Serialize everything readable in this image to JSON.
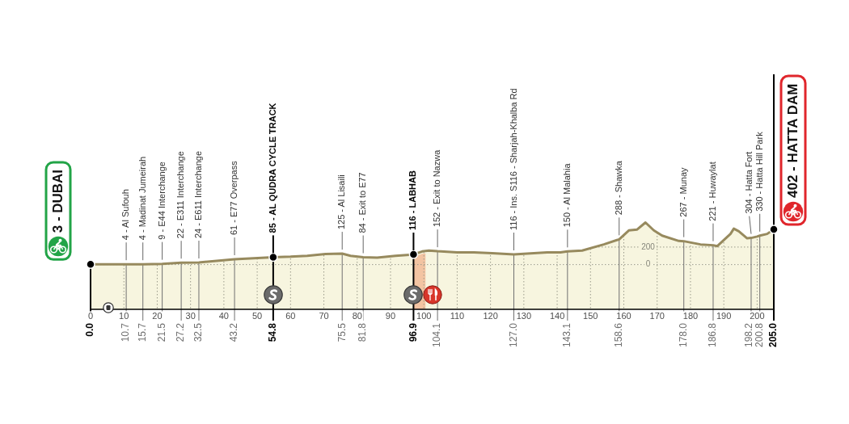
{
  "chart_data": {
    "type": "area",
    "xlim": [
      0,
      205
    ],
    "xticks": [
      0,
      10,
      20,
      30,
      40,
      50,
      60,
      70,
      80,
      90,
      100,
      110,
      120,
      130,
      140,
      150,
      160,
      170,
      180,
      190,
      200
    ],
    "ylim": [
      -510,
      2170
    ],
    "yticks": [
      0,
      200
    ],
    "grid": true,
    "series": [
      {
        "color": "#f7f5df",
        "x": [
          0,
          10.7,
          15.7,
          21.5,
          27.2,
          32.5,
          43.2,
          54.8,
          60,
          65,
          70.5,
          75.5,
          78,
          81.8,
          86,
          91.5,
          96.9,
          99.5,
          101.5,
          104.1,
          110,
          115,
          120.5,
          127,
          133,
          137,
          141,
          143.1,
          147.5,
          154,
          158.6,
          161.5,
          164,
          166.5,
          169,
          171.5,
          176.5,
          178,
          183,
          186.8,
          188,
          192,
          193,
          194.5,
          197,
          198.2,
          200,
          200.8,
          203,
          205
        ],
        "values": [
          3,
          4,
          4,
          9,
          22,
          24,
          61,
          85,
          90,
          100,
          120,
          125,
          100,
          84,
          80,
          100,
          116,
          150,
          160,
          152,
          140,
          140,
          130,
          116,
          130,
          140,
          140,
          150,
          160,
          230,
          288,
          390,
          400,
          480,
          390,
          330,
          270,
          267,
          230,
          221,
          210,
          350,
          410,
          380,
          300,
          304,
          320,
          330,
          350,
          402
        ]
      },
      {
        "type": "scatter",
        "color": "#000000",
        "marker": "circle",
        "x": [
          0,
          54.8,
          96.9,
          205
        ],
        "values": [
          3,
          85,
          116,
          402
        ]
      }
    ],
    "bands": [
      {
        "axis": "y",
        "from": -510,
        "to": 0,
        "color": "#f7f5df"
      },
      {
        "axis": "x",
        "from": 97,
        "to": 100.5,
        "color": "#f3c4a2"
      }
    ],
    "ref_lines": [
      {
        "axis": "x",
        "value": 0,
        "label": "0.0",
        "color": "#000000"
      },
      {
        "axis": "x",
        "value": 10.7,
        "label": "10.7",
        "color": "#707070"
      },
      {
        "axis": "x",
        "value": 15.7,
        "label": "15.7",
        "color": "#707070"
      },
      {
        "axis": "x",
        "value": 21.5,
        "label": "21.5",
        "color": "#707070"
      },
      {
        "axis": "x",
        "value": 27.2,
        "label": "27.2",
        "color": "#707070"
      },
      {
        "axis": "x",
        "value": 32.5,
        "label": "32.5",
        "color": "#707070"
      },
      {
        "axis": "x",
        "value": 43.2,
        "label": "43.2",
        "color": "#707070"
      },
      {
        "axis": "x",
        "value": 54.8,
        "label": "54.8",
        "color": "#000000"
      },
      {
        "axis": "x",
        "value": 75.5,
        "label": "75.5",
        "color": "#707070"
      },
      {
        "axis": "x",
        "value": 81.8,
        "label": "81.8",
        "color": "#707070"
      },
      {
        "axis": "x",
        "value": 96.9,
        "label": "96.9",
        "color": "#000000"
      },
      {
        "axis": "x",
        "value": 104.1,
        "label": "104.1",
        "color": "#707070"
      },
      {
        "axis": "x",
        "value": 127,
        "label": "127.0",
        "color": "#707070"
      },
      {
        "axis": "x",
        "value": 143.1,
        "label": "143.1",
        "color": "#707070"
      },
      {
        "axis": "x",
        "value": 158.6,
        "label": "158.6",
        "color": "#707070"
      },
      {
        "axis": "x",
        "value": 178,
        "label": "178.0",
        "color": "#707070"
      },
      {
        "axis": "x",
        "value": 186.8,
        "label": "186.8",
        "color": "#707070"
      },
      {
        "axis": "x",
        "value": 198.2,
        "label": "198.2",
        "color": "#707070"
      },
      {
        "axis": "x",
        "value": 200.8,
        "label": "200.8",
        "color": "#707070"
      },
      {
        "axis": "x",
        "value": 205,
        "label": "205.0",
        "color": "#000000"
      }
    ],
    "annotations": [
      {
        "text": "3 - DUBAI",
        "x": 0,
        "y": 3
      },
      {
        "text": "4 - Al Sufouh",
        "x": 10.7,
        "y": 4
      },
      {
        "text": "4 - Madinat Jumeirah",
        "x": 15.7,
        "y": 4
      },
      {
        "text": "9 - E44 Interchange",
        "x": 21.5,
        "y": 9
      },
      {
        "text": "22 - E311 Interchange",
        "x": 27.2,
        "y": 22
      },
      {
        "text": "24 - E611 Interchange",
        "x": 32.5,
        "y": 24
      },
      {
        "text": "61 - E77 Overpass",
        "x": 43.2,
        "y": 61
      },
      {
        "text": "85 - AL QUDRA CYCLE TRACK",
        "x": 54.8,
        "y": 85
      },
      {
        "text": "125 - Al Lisaili",
        "x": 75.5,
        "y": 125
      },
      {
        "text": "84 - Exit to E77",
        "x": 81.8,
        "y": 84
      },
      {
        "text": "116 - LABHAB",
        "x": 96.9,
        "y": 116
      },
      {
        "text": "152 - Exit to Nazwa",
        "x": 104.1,
        "y": 152
      },
      {
        "text": "116 - Ins. S116 - Sharjah-Khalba Rd",
        "x": 127,
        "y": 116
      },
      {
        "text": "150 - Al Malahia",
        "x": 143.1,
        "y": 150
      },
      {
        "text": "288 - Shawka",
        "x": 158.6,
        "y": 288
      },
      {
        "text": "267 - Munay",
        "x": 178,
        "y": 267
      },
      {
        "text": "221 - Huwaylat",
        "x": 186.8,
        "y": 221
      },
      {
        "text": "304 - Hatta Fort",
        "x": 198.2,
        "y": 304
      },
      {
        "text": "330 - Hatta Hill Park",
        "x": 200.8,
        "y": 330
      },
      {
        "text": "402 - HATTA DAM",
        "x": 205,
        "y": 402
      }
    ]
  }
}
